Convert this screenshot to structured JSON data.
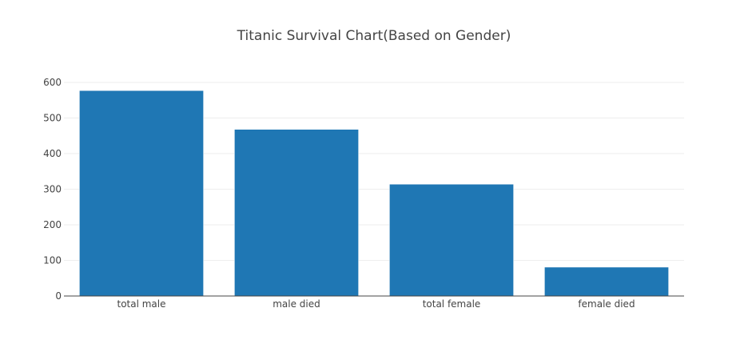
{
  "chart_data": {
    "type": "bar",
    "title": "Titanic Survival Chart(Based on Gender)",
    "categories": [
      "total male",
      "male died",
      "total female",
      "female died"
    ],
    "values": [
      577,
      468,
      314,
      81
    ],
    "xlabel": "",
    "ylabel": "",
    "ylim": [
      0,
      600
    ],
    "yticks": [
      0,
      100,
      200,
      300,
      400,
      500,
      600
    ],
    "grid": true,
    "legend": "none",
    "bar_color": "#1f77b4"
  }
}
